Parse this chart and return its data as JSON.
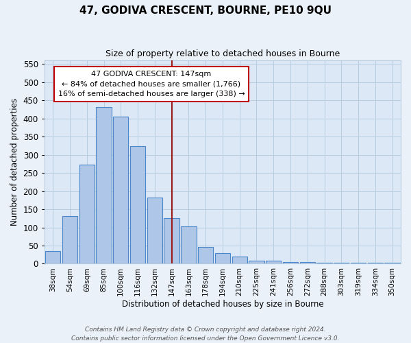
{
  "title": "47, GODIVA CRESCENT, BOURNE, PE10 9QU",
  "subtitle": "Size of property relative to detached houses in Bourne",
  "xlabel": "Distribution of detached houses by size in Bourne",
  "ylabel": "Number of detached properties",
  "bar_labels": [
    "38sqm",
    "54sqm",
    "69sqm",
    "85sqm",
    "100sqm",
    "116sqm",
    "132sqm",
    "147sqm",
    "163sqm",
    "178sqm",
    "194sqm",
    "210sqm",
    "225sqm",
    "241sqm",
    "256sqm",
    "272sqm",
    "288sqm",
    "303sqm",
    "319sqm",
    "334sqm",
    "350sqm"
  ],
  "bar_heights": [
    35,
    132,
    273,
    432,
    405,
    323,
    183,
    126,
    103,
    46,
    30,
    20,
    8,
    8,
    4,
    4,
    3,
    3,
    2,
    2,
    2
  ],
  "bar_color": "#aec6e8",
  "bar_edge_color": "#4a86c8",
  "vline_x_index": 7,
  "vline_color": "#9b1a1a",
  "ylim": [
    0,
    560
  ],
  "yticks": [
    0,
    50,
    100,
    150,
    200,
    250,
    300,
    350,
    400,
    450,
    500,
    550
  ],
  "annotation_title": "47 GODIVA CRESCENT: 147sqm",
  "annotation_line1": "← 84% of detached houses are smaller (1,766)",
  "annotation_line2": "16% of semi-detached houses are larger (338) →",
  "annotation_box_color": "#ffffff",
  "annotation_box_edge": "#c00000",
  "footer1": "Contains HM Land Registry data © Crown copyright and database right 2024.",
  "footer2": "Contains public sector information licensed under the Open Government Licence v3.0.",
  "background_color": "#eaf1f8",
  "plot_bg_color": "#dce8f5",
  "grid_color": "#b8cde0",
  "title_fontsize": 11,
  "subtitle_fontsize": 9,
  "ylabel_fontsize": 8.5,
  "xlabel_fontsize": 8.5,
  "tick_fontsize": 7.5,
  "ytick_fontsize": 8.5,
  "ann_fontsize": 8,
  "ann_title_fontsize": 8.5,
  "footer_fontsize": 6.5
}
